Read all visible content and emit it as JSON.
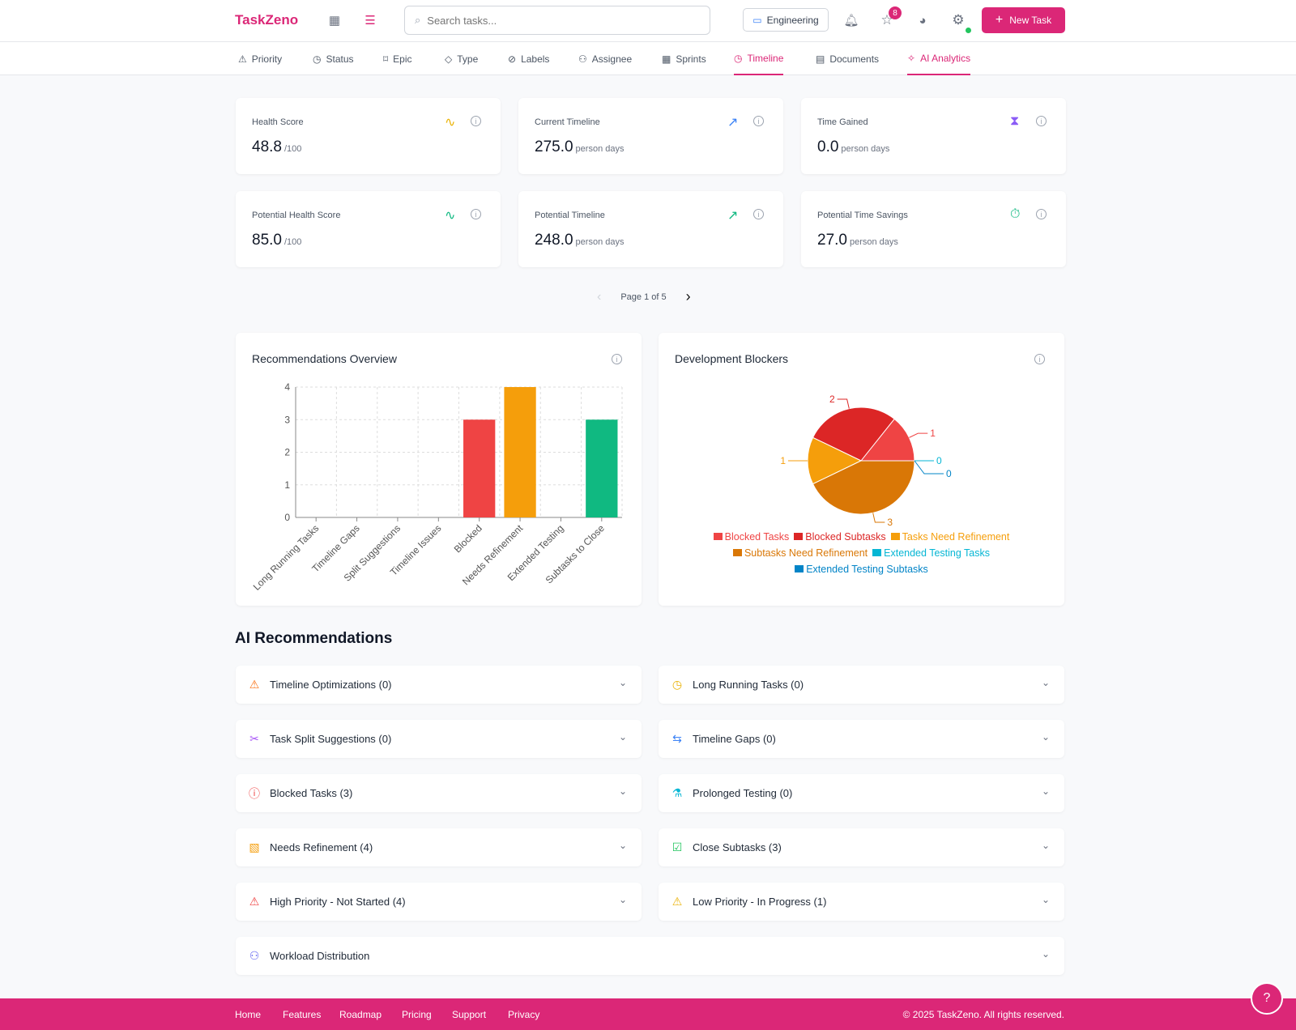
{
  "header": {
    "logo": "TaskZeno",
    "search_placeholder": "Search tasks...",
    "workspace": "Engineering",
    "favorites_count": "8",
    "new_task": "New Task"
  },
  "tabs": [
    {
      "label": "Priority",
      "icon": "⚠"
    },
    {
      "label": "Status",
      "icon": "◷"
    },
    {
      "label": "Epic",
      "icon": "⌑"
    },
    {
      "label": "Type",
      "icon": "◇"
    },
    {
      "label": "Labels",
      "icon": "⊘"
    },
    {
      "label": "Assignee",
      "icon": "⚇"
    },
    {
      "label": "Sprints",
      "icon": "▦"
    },
    {
      "label": "Timeline",
      "icon": "◷"
    },
    {
      "label": "Documents",
      "icon": "▤"
    },
    {
      "label": "AI Analytics",
      "icon": "✧"
    }
  ],
  "stats": [
    {
      "label": "Health Score",
      "value": "48.8",
      "unit": "/100",
      "icon": "activity-icon",
      "glyph": "∿",
      "color": "#eab308"
    },
    {
      "label": "Current Timeline",
      "value": "275.0",
      "unit": "person days",
      "icon": "trending-up-icon",
      "glyph": "↗",
      "color": "#3b82f6"
    },
    {
      "label": "Time Gained",
      "value": "0.0",
      "unit": "person days",
      "icon": "hourglass-icon",
      "glyph": "⧗",
      "color": "#8b5cf6"
    },
    {
      "label": "Potential Health Score",
      "value": "85.0",
      "unit": "/100",
      "icon": "activity-icon",
      "glyph": "∿",
      "color": "#10b981"
    },
    {
      "label": "Potential Timeline",
      "value": "248.0",
      "unit": "person days",
      "icon": "trending-up-icon",
      "glyph": "↗",
      "color": "#10b981"
    },
    {
      "label": "Potential Time Savings",
      "value": "27.0",
      "unit": "person days",
      "icon": "timer-icon",
      "glyph": "⏱",
      "color": "#10b981"
    }
  ],
  "pagination": {
    "text": "Page 1 of 5"
  },
  "chart_data": [
    {
      "type": "bar",
      "title": "Recommendations Overview",
      "categories": [
        "Long Running Tasks",
        "Timeline Gaps",
        "Split Suggestions",
        "Timeline Issues",
        "Blocked",
        "Needs Refinement",
        "Extended Testing",
        "Subtasks to Close"
      ],
      "values": [
        0,
        0,
        0,
        0,
        3,
        4,
        0,
        3
      ],
      "colors": [
        "#ef4444",
        "#ef4444",
        "#ef4444",
        "#ef4444",
        "#ef4444",
        "#f59e0b",
        "#06b6d4",
        "#10b981"
      ],
      "ylim": [
        0,
        4
      ],
      "yticks": [
        "0",
        "1",
        "2",
        "3",
        "4"
      ],
      "grid": true
    },
    {
      "type": "pie",
      "title": "Development Blockers",
      "labels": [
        "Blocked Tasks",
        "Blocked Subtasks",
        "Tasks Need Refinement",
        "Subtasks Need Refinement",
        "Extended Testing Tasks",
        "Extended Testing Subtasks"
      ],
      "values": [
        1,
        2,
        1,
        3,
        0,
        0
      ],
      "colors": [
        "#ef4444",
        "#dc2626",
        "#f59e0b",
        "#d97706",
        "#06b6d4",
        "#0284c7"
      ],
      "legend": "bottom"
    }
  ],
  "section_title": "AI Recommendations",
  "recommendations": [
    {
      "label": "Timeline Optimizations (0)",
      "glyph": "⚠",
      "color": "#f97316"
    },
    {
      "label": "Long Running Tasks (0)",
      "glyph": "◷",
      "color": "#eab308"
    },
    {
      "label": "Task Split Suggestions (0)",
      "glyph": "✂",
      "color": "#a855f7"
    },
    {
      "label": "Timeline Gaps (0)",
      "glyph": "⇆",
      "color": "#3b82f6"
    },
    {
      "label": "Blocked Tasks (3)",
      "glyph": "ⓘ",
      "color": "#ef4444"
    },
    {
      "label": "Prolonged Testing (0)",
      "glyph": "⚗",
      "color": "#06b6d4"
    },
    {
      "label": "Needs Refinement (4)",
      "glyph": "▧",
      "color": "#f59e0b"
    },
    {
      "label": "Close Subtasks (3)",
      "glyph": "☑",
      "color": "#22c55e"
    },
    {
      "label": "High Priority - Not Started (4)",
      "glyph": "⚠",
      "color": "#ef4444"
    },
    {
      "label": "Low Priority - In Progress (1)",
      "glyph": "⚠",
      "color": "#eab308"
    },
    {
      "label": "Workload Distribution",
      "glyph": "⚇",
      "color": "#6366f1"
    }
  ],
  "footer": {
    "links": [
      "Home",
      "Features",
      "Roadmap",
      "Pricing",
      "Support",
      "Privacy"
    ],
    "copyright": "© 2025 TaskZeno. All rights reserved."
  }
}
